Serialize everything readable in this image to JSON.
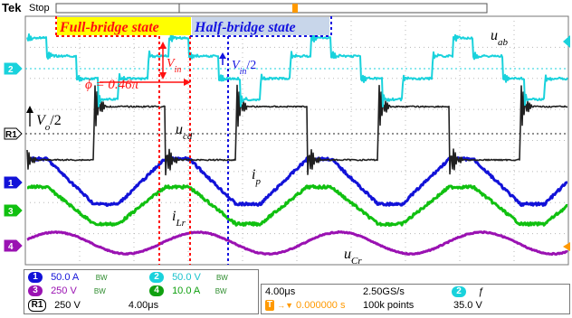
{
  "scope": {
    "brand": "Tek",
    "run_state": "Stop",
    "colors": {
      "ch1": "#1212d8",
      "ch2": "#19d2dc",
      "ch3": "#9a12b2",
      "ch4": "#10c010",
      "ref1": "#202020",
      "annotation_red": "#ff1010",
      "annotation_blue": "#1414e0",
      "full_bridge_bg": "#ffff00",
      "half_bridge_bg": "#c8d6ea"
    }
  },
  "channel_markers": [
    "2",
    "R1",
    "1",
    "3",
    "4"
  ],
  "annotations": {
    "full_bridge": "Full-bridge state",
    "half_bridge": "Half-bridge state",
    "phase": "ϕ = 0.46π",
    "vin": "V",
    "vin_sub": "in",
    "half_vin_sub": "in",
    "half_vin_suffix": "/2",
    "vo": "V",
    "vo_sub": "o",
    "vo_suffix": "/2",
    "u_ab": "u",
    "u_ab_sub": "ab",
    "u_cd": "u",
    "u_cd_sub": "cd",
    "i_p": "i",
    "i_p_sub": "p",
    "i_lr": "i",
    "i_lr_sub": "Lr",
    "u_cr": "u",
    "u_cr_sub": "Cr"
  },
  "readout": {
    "ch1": {
      "label": "1",
      "scale": "50.0 A",
      "bw": "BW"
    },
    "ch2": {
      "label": "2",
      "scale": "50.0 V",
      "bw": "BW"
    },
    "ch3": {
      "label": "3",
      "scale": "250 V",
      "bw": "BW"
    },
    "ch4": {
      "label": "4",
      "scale": "10.0 A",
      "bw": "BW"
    },
    "ref1": {
      "label": "R1",
      "scale": "250 V",
      "time": "4.00μs"
    },
    "timebase": "4.00μs",
    "sample_rate": "2.50GS/s",
    "record_length": "100k points",
    "trigger_source": "2",
    "trigger_slope": "ƒ",
    "trigger_level": "35.0 V",
    "trigger_position_label": "T",
    "trigger_position": "0.000000 s"
  },
  "chart_data": {
    "type": "line",
    "xlabel": "",
    "ylabel": "",
    "grid": true,
    "x_divisions": 10,
    "y_divisions": 8,
    "series": [
      {
        "name": "u_ab",
        "channel": "2",
        "shape": "three-level square wave with ringing",
        "levels": [
          "+V_in",
          "+V_in/2",
          "0",
          "-V_in/2",
          "-V_in"
        ],
        "periods_shown": 2.5
      },
      {
        "name": "u_cd",
        "channel": "R1",
        "shape": "square wave with switching ringing",
        "levels": [
          "+V_o/2",
          "-V_o/2"
        ],
        "periods_shown": 2.5
      },
      {
        "name": "i_p",
        "channel": "1",
        "shape": "triangular with flat tops",
        "periods_shown": 2.5
      },
      {
        "name": "i_Lr",
        "channel": "4",
        "shape": "triangular with flat tops",
        "periods_shown": 2.5
      },
      {
        "name": "u_Cr",
        "channel": "3",
        "shape": "quasi-sinusoidal",
        "periods_shown": 2.5
      }
    ],
    "phase_shift": "0.46π"
  }
}
